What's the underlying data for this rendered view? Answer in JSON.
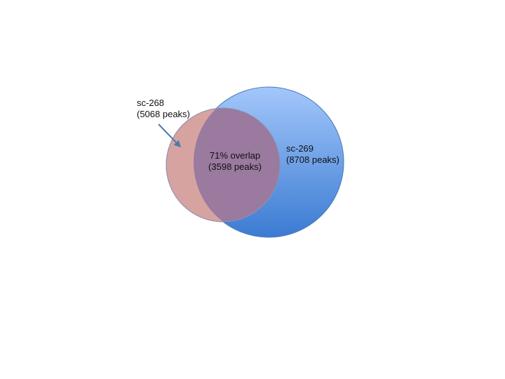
{
  "venn": {
    "set_a": {
      "name": "sc-268",
      "count_text": "(5068 peaks)",
      "fill": "#d7a3a0",
      "stroke": "#8f90b4"
    },
    "set_b": {
      "name": "sc-269",
      "count_text": "(8708 peaks)",
      "fill_top": "#a3c7fb",
      "fill_bottom": "#3b7bd2",
      "stroke": "#4a7ab4"
    },
    "overlap": {
      "line1": "71% overlap",
      "line2": "(3598 peaks)",
      "fill": "#9a7a9f"
    },
    "arrow_color": "#4f7bab"
  }
}
